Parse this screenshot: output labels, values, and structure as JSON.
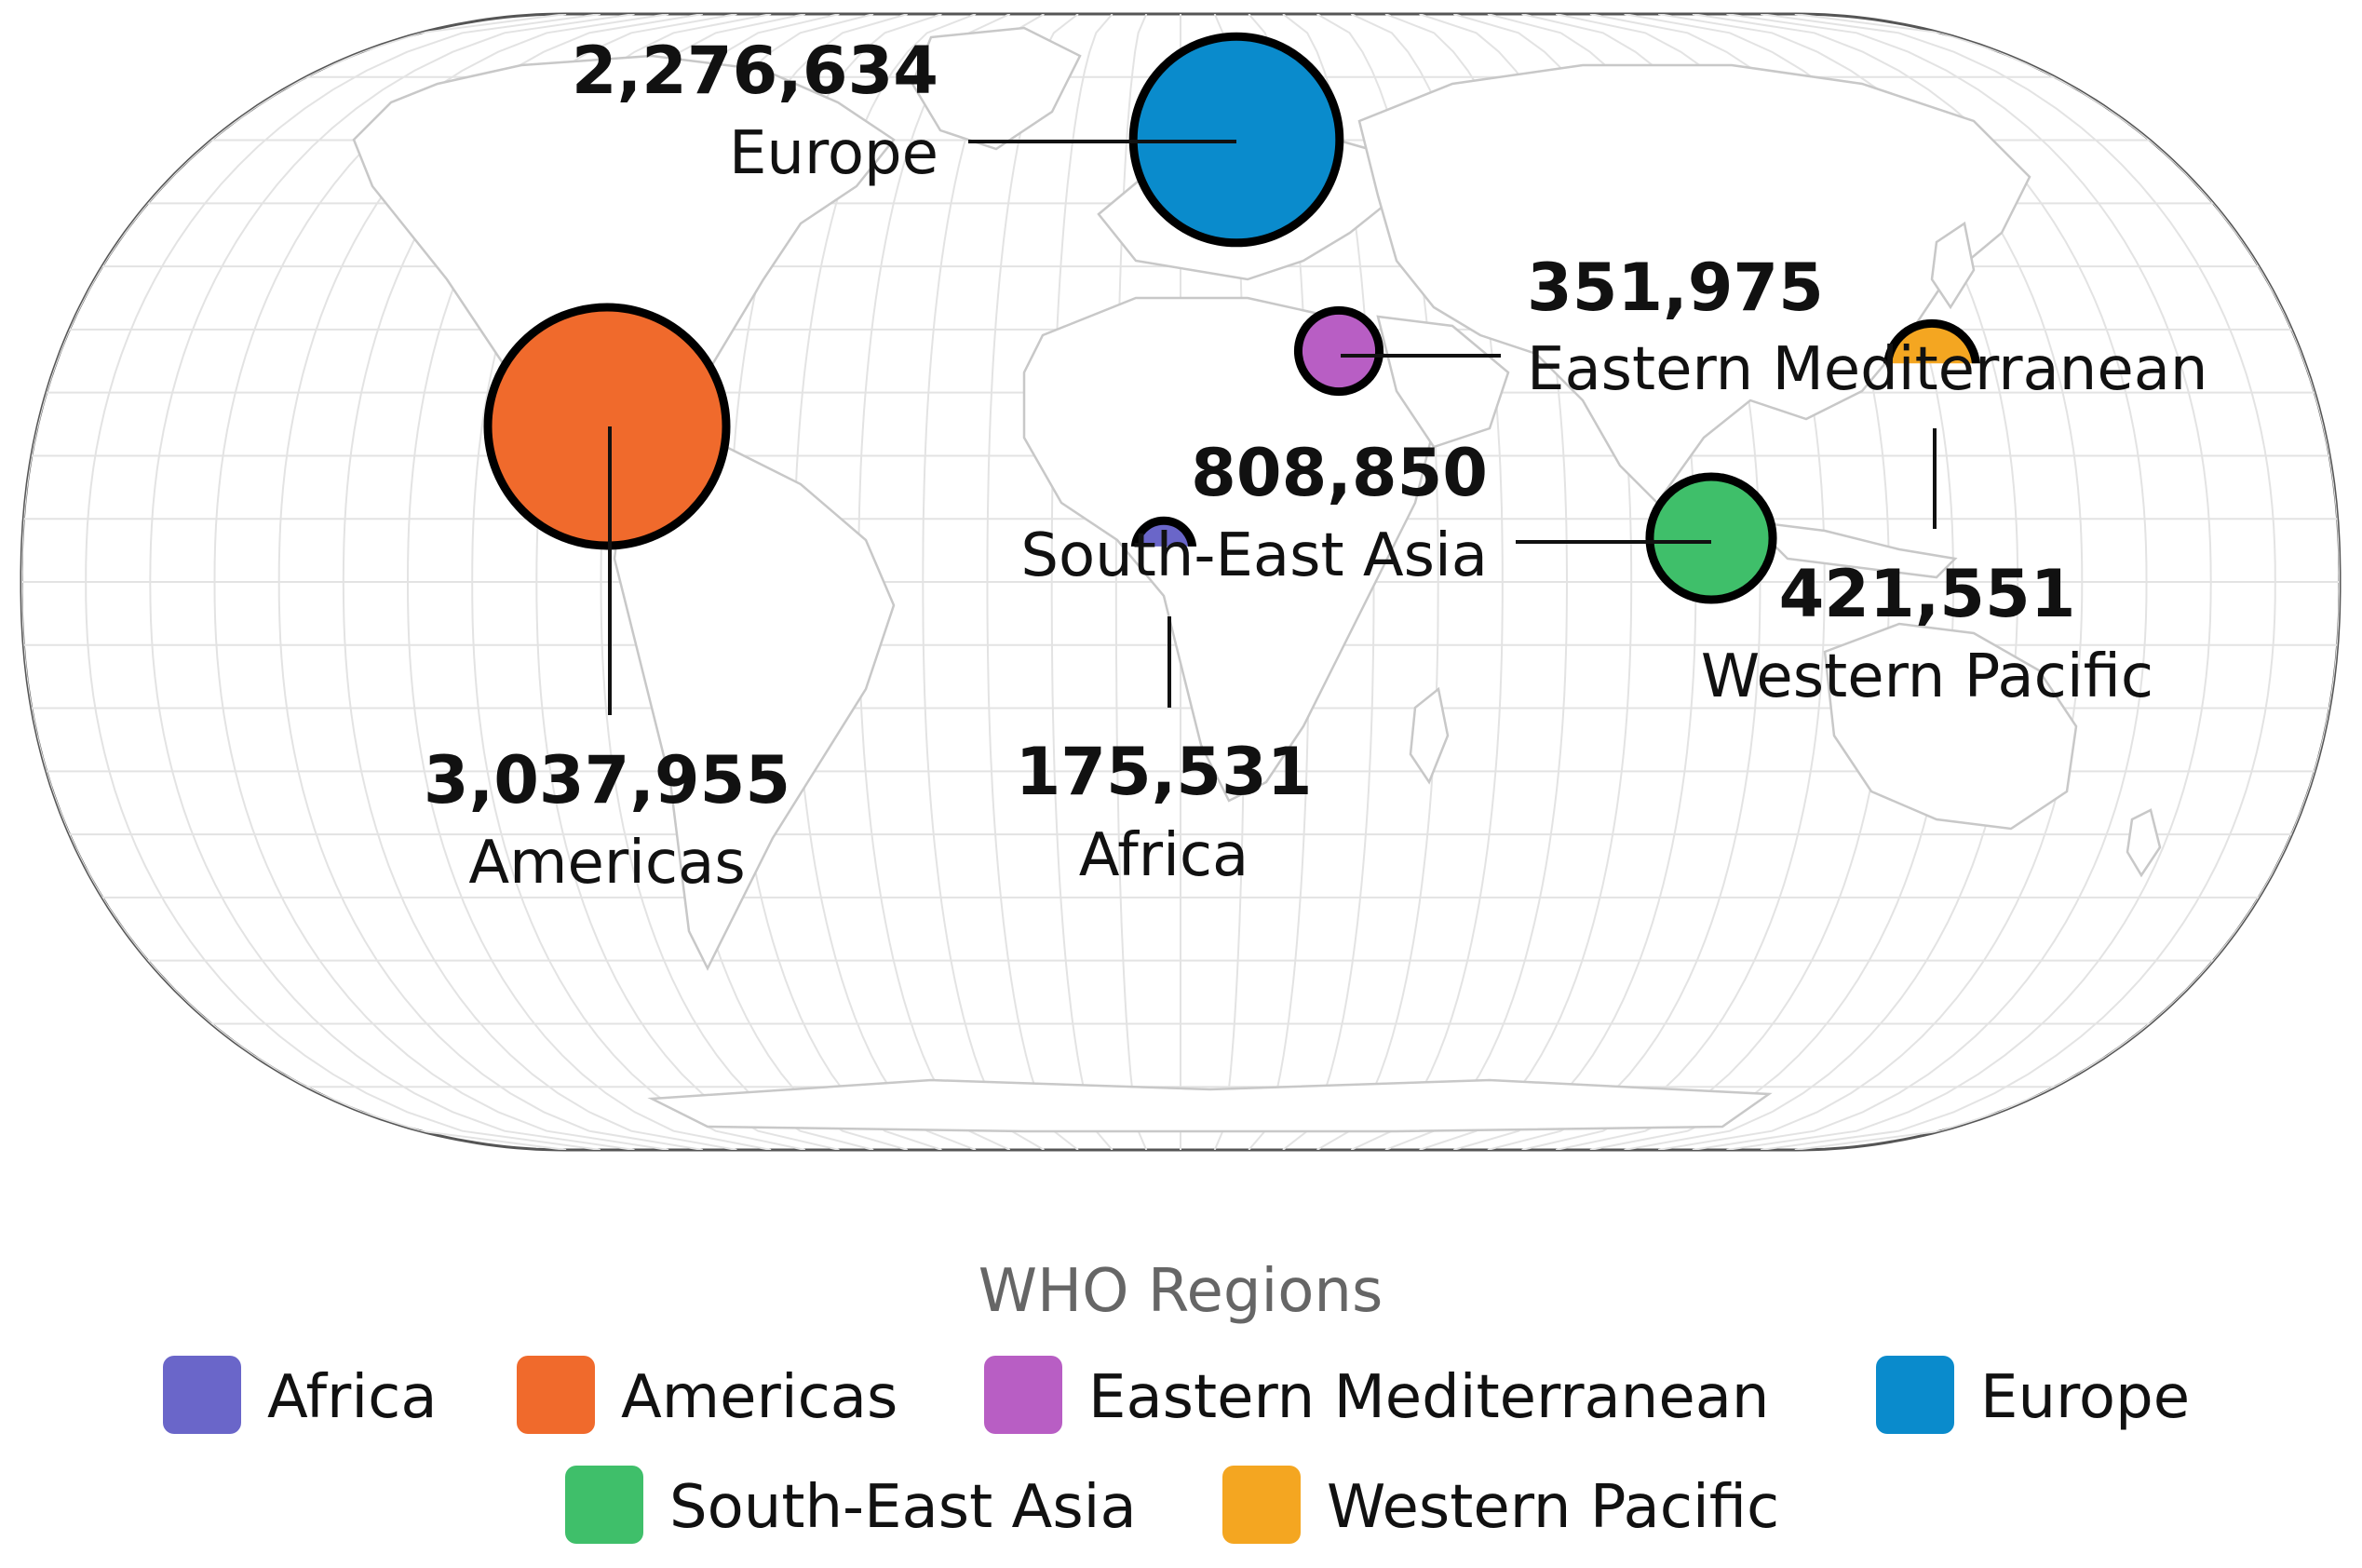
{
  "legend": {
    "title": "WHO Regions"
  },
  "colors": {
    "Africa": "#6a66c9",
    "Americas": "#f06a2c",
    "Eastern Mediterranean": "#b85ec4",
    "Europe": "#0a8bcc",
    "South-East Asia": "#3fbf6a",
    "Western Pacific": "#f4a621"
  },
  "chart_data": {
    "type": "bubble-map",
    "projection": "equal-earth-like world map",
    "series": [
      {
        "name": "Africa",
        "value": 175531,
        "value_label": "175,531"
      },
      {
        "name": "Americas",
        "value": 3037955,
        "value_label": "3,037,955"
      },
      {
        "name": "Eastern Mediterranean",
        "value": 351975,
        "value_label": "351,975"
      },
      {
        "name": "Europe",
        "value": 2276634,
        "value_label": "2,276,634"
      },
      {
        "name": "South-East Asia",
        "value": 808850,
        "value_label": "808,850"
      },
      {
        "name": "Western Pacific",
        "value": 421551,
        "value_label": "421,551"
      }
    ],
    "legend_placement": "bottom"
  }
}
